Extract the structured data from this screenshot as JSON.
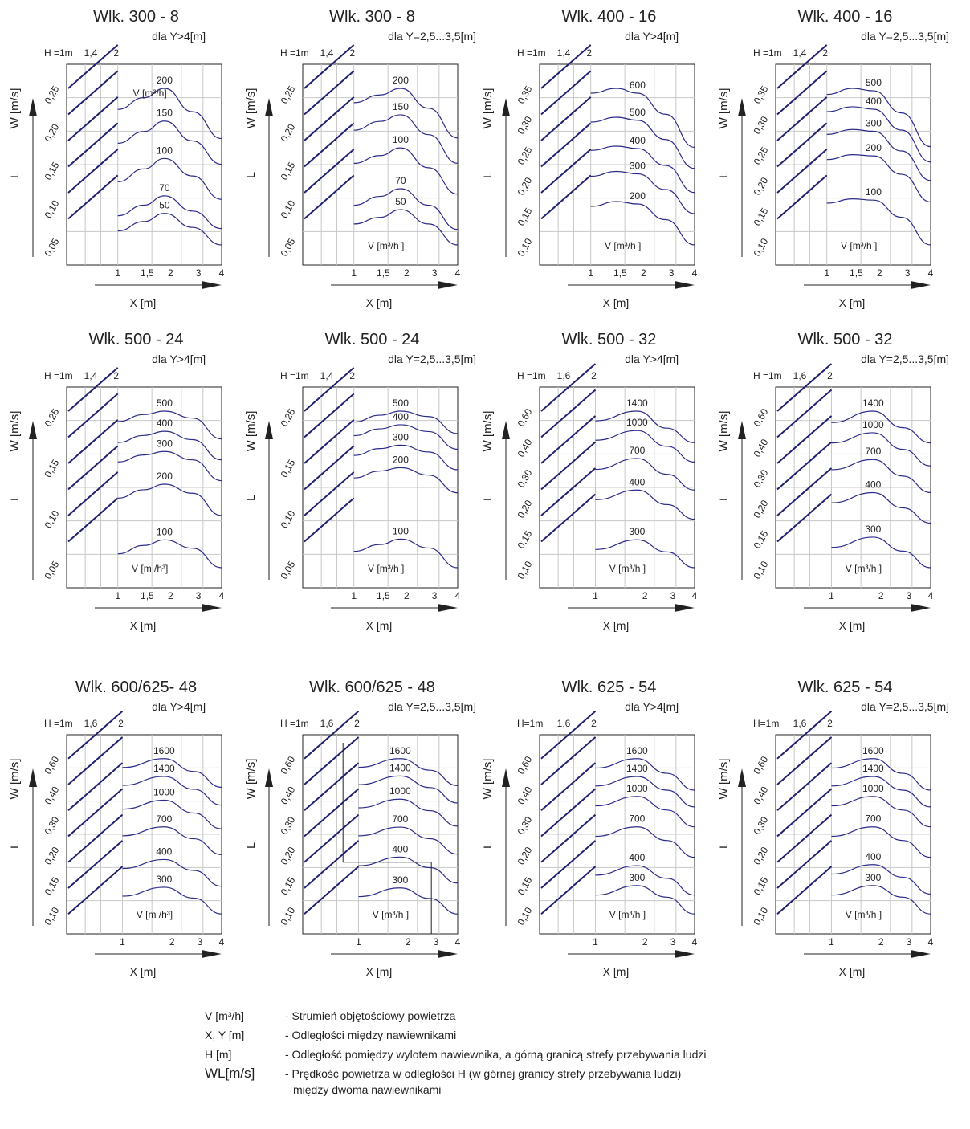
{
  "colors": {
    "curve": "#2b2b8a",
    "hatch": "#202070",
    "grid": "#c8c8c8",
    "frame": "#222222"
  },
  "common": {
    "w_label": "W [m/s]",
    "l_label": "L",
    "x_label": "X [m]"
  },
  "chart_data": [
    {
      "type": "line",
      "title": "Wlk. 300 - 8",
      "subtitle": "dla Y>4[m]",
      "h_ticks": [
        "H =1m",
        "1,4",
        "2"
      ],
      "x_ticks": [
        "1",
        "1,5",
        "2",
        "3",
        "4"
      ],
      "w_ticks": [
        "0,25",
        "0,20",
        "0,15",
        "0,10",
        "0,05"
      ],
      "unit_label": "V [m³/h]",
      "unit_pos": "top",
      "series": [
        {
          "name": "200",
          "values": [
            0.162,
            0.172,
            0.18,
            0.16,
            0.137
          ]
        },
        {
          "name": "150",
          "values": [
            0.133,
            0.143,
            0.152,
            0.135,
            0.115
          ]
        },
        {
          "name": "100",
          "values": [
            0.1,
            0.111,
            0.12,
            0.105,
            0.085
          ]
        },
        {
          "name": "70",
          "values": [
            0.071,
            0.08,
            0.088,
            0.075,
            0.06
          ]
        },
        {
          "name": "50",
          "values": [
            0.058,
            0.066,
            0.073,
            0.061,
            0.046
          ]
        }
      ]
    },
    {
      "type": "line",
      "title": "Wlk. 300 - 8",
      "subtitle": "dla  Y=2,5...3,5[m]",
      "h_ticks": [
        "H =1m",
        "1,4",
        "2"
      ],
      "x_ticks": [
        "1",
        "1,5",
        "2",
        "3",
        "4"
      ],
      "w_ticks": [
        "0,25",
        "0,20",
        "0,15",
        "0,10",
        "0,05"
      ],
      "unit_label": "V [m³/h ]",
      "unit_pos": "bottom",
      "series": [
        {
          "name": "200",
          "values": [
            0.205,
            0.212,
            0.218,
            0.2,
            0.173
          ]
        },
        {
          "name": "150",
          "values": [
            0.18,
            0.188,
            0.194,
            0.176,
            0.15
          ]
        },
        {
          "name": "100",
          "values": [
            0.15,
            0.157,
            0.164,
            0.146,
            0.122
          ]
        },
        {
          "name": "70",
          "values": [
            0.112,
            0.12,
            0.127,
            0.112,
            0.09
          ]
        },
        {
          "name": "50",
          "values": [
            0.095,
            0.101,
            0.108,
            0.095,
            0.076
          ]
        }
      ]
    },
    {
      "type": "line",
      "title": "Wlk. 400 - 16",
      "subtitle": "dla Y>4[m]",
      "h_ticks": [
        "H =1m",
        "1,4",
        "2"
      ],
      "x_ticks": [
        "1",
        "1,5",
        "2",
        "3",
        "4"
      ],
      "w_ticks": [
        "0,35",
        "0,30",
        "0,25",
        "0,20",
        "0,15",
        "0,10"
      ],
      "unit_label": "V [m³/h ]",
      "unit_pos": "bottom",
      "series": [
        {
          "name": "600",
          "values": [
            0.36,
            0.368,
            0.36,
            0.325,
            0.27
          ]
        },
        {
          "name": "500",
          "values": [
            0.312,
            0.32,
            0.315,
            0.283,
            0.235
          ]
        },
        {
          "name": "400",
          "values": [
            0.265,
            0.272,
            0.268,
            0.24,
            0.195
          ]
        },
        {
          "name": "300",
          "values": [
            0.222,
            0.23,
            0.226,
            0.2,
            0.16
          ]
        },
        {
          "name": "200",
          "values": [
            0.172,
            0.18,
            0.176,
            0.15,
            0.108
          ]
        }
      ]
    },
    {
      "type": "line",
      "title": "Wlk. 400 - 16",
      "subtitle": "dla  Y=2,5...3,5[m]",
      "h_ticks": [
        "H =1m",
        "1,4",
        "2"
      ],
      "x_ticks": [
        "1",
        "1,5",
        "2",
        "3",
        "4"
      ],
      "w_ticks": [
        "0,35",
        "0,30",
        "0,25",
        "0,20",
        "0,15",
        "0,10"
      ],
      "unit_label": "V [m³/h ]",
      "unit_pos": "bottom",
      "series": [
        {
          "name": "500",
          "values": [
            0.33,
            0.34,
            0.336,
            0.3,
            0.245
          ]
        },
        {
          "name": "400",
          "values": [
            0.302,
            0.31,
            0.306,
            0.272,
            0.22
          ]
        },
        {
          "name": "300",
          "values": [
            0.265,
            0.273,
            0.27,
            0.238,
            0.19
          ]
        },
        {
          "name": "200",
          "values": [
            0.224,
            0.232,
            0.23,
            0.2,
            0.155
          ]
        },
        {
          "name": "100",
          "values": [
            0.153,
            0.16,
            0.158,
            0.13,
            0.085
          ]
        }
      ]
    },
    {
      "type": "line",
      "title": "Wlk. 500 - 24",
      "subtitle": "dla Y>4[m]",
      "h_ticks": [
        "H =1m",
        "1,4",
        "2"
      ],
      "x_ticks": [
        "1",
        "1,5",
        "2",
        "3",
        "4"
      ],
      "w_ticks": [
        "0,25",
        "0,15",
        "0,10",
        "0,05"
      ],
      "unit_label": "V [m /h³]",
      "unit_pos": "bottom",
      "series": [
        {
          "name": "500",
          "values": [
            0.24,
            0.25,
            0.255,
            0.245,
            0.215
          ]
        },
        {
          "name": "400",
          "values": [
            0.21,
            0.22,
            0.226,
            0.214,
            0.185
          ]
        },
        {
          "name": "300",
          "values": [
            0.182,
            0.192,
            0.197,
            0.185,
            0.155
          ]
        },
        {
          "name": "200",
          "values": [
            0.13,
            0.142,
            0.15,
            0.137,
            0.105
          ]
        },
        {
          "name": "100",
          "values": [
            0.05,
            0.062,
            0.07,
            0.058,
            0.03
          ]
        }
      ]
    },
    {
      "type": "line",
      "title": "Wlk. 500 - 24",
      "subtitle": "dla  Y=2,5...3,5[m]",
      "h_ticks": [
        "H =1m",
        "1,4",
        "2"
      ],
      "x_ticks": [
        "1",
        "1,5",
        "2",
        "3",
        "4"
      ],
      "w_ticks": [
        "0,25",
        "0,15",
        "0,10",
        "0,05"
      ],
      "unit_label": "V [m³/h ]",
      "unit_pos": "bottom",
      "series": [
        {
          "name": "500",
          "values": [
            0.282,
            0.292,
            0.298,
            0.29,
            0.265
          ]
        },
        {
          "name": "400",
          "values": [
            0.262,
            0.272,
            0.278,
            0.268,
            0.242
          ]
        },
        {
          "name": "300",
          "values": [
            0.233,
            0.243,
            0.248,
            0.238,
            0.212
          ]
        },
        {
          "name": "200",
          "values": [
            0.2,
            0.21,
            0.215,
            0.204,
            0.178
          ]
        },
        {
          "name": "100",
          "values": [
            0.092,
            0.102,
            0.11,
            0.097,
            0.068
          ]
        }
      ]
    },
    {
      "type": "line",
      "title": "Wlk. 500 - 32",
      "subtitle": "dla Y>4[m]",
      "h_ticks": [
        "H =1m",
        "1,6",
        "2"
      ],
      "x_ticks": [
        "1",
        "2",
        "3",
        "4"
      ],
      "w_ticks": [
        "0,60",
        "0,40",
        "0,30",
        "0,20",
        "0,15",
        "0,10"
      ],
      "unit_label": "V [m³/h ]",
      "unit_pos": "bottom",
      "series": [
        {
          "name": "1400",
          "values": [
            0.68,
            0.72,
            0.65,
            0.59
          ]
        },
        {
          "name": "1000",
          "values": [
            0.6,
            0.64,
            0.575,
            0.51
          ]
        },
        {
          "name": "700",
          "values": [
            0.48,
            0.525,
            0.46,
            0.395
          ]
        },
        {
          "name": "400",
          "values": [
            0.355,
            0.395,
            0.335,
            0.275
          ]
        },
        {
          "name": "300",
          "values": [
            0.15,
            0.19,
            0.14,
            0.075
          ]
        }
      ]
    },
    {
      "type": "line",
      "title": "Wlk. 500 - 32",
      "subtitle": "dla  Y=2,5...3,5[m]",
      "h_ticks": [
        "H =1m",
        "1,6",
        "2"
      ],
      "x_ticks": [
        "1",
        "2",
        "3",
        "4"
      ],
      "w_ticks": [
        "0,60",
        "0,40",
        "0,30",
        "0,20",
        "0,15",
        "0,10"
      ],
      "unit_label": "V [m³/h ]",
      "unit_pos": "bottom",
      "series": [
        {
          "name": "1400",
          "values": [
            0.69,
            0.735,
            0.67,
            0.61
          ]
        },
        {
          "name": "1000",
          "values": [
            0.61,
            0.65,
            0.585,
            0.52
          ]
        },
        {
          "name": "700",
          "values": [
            0.505,
            0.545,
            0.48,
            0.415
          ]
        },
        {
          "name": "400",
          "values": [
            0.375,
            0.415,
            0.355,
            0.295
          ]
        },
        {
          "name": "300",
          "values": [
            0.2,
            0.24,
            0.185,
            0.12
          ]
        }
      ]
    },
    {
      "type": "line",
      "title": "Wlk. 600/625- 48",
      "subtitle": "dla Y>4[m]",
      "h_ticks": [
        "H =1m",
        "1,6",
        "2"
      ],
      "x_ticks": [
        "1",
        "2",
        "3",
        "4"
      ],
      "w_ticks": [
        "0,60",
        "0,40",
        "0,30",
        "0,20",
        "0,15",
        "0,10"
      ],
      "unit_label": "V [m /h³]",
      "unit_pos": "bottom",
      "series": [
        {
          "name": "1600",
          "values": [
            0.8,
            0.845,
            0.78,
            0.7
          ]
        },
        {
          "name": "1400",
          "values": [
            0.71,
            0.755,
            0.69,
            0.61
          ]
        },
        {
          "name": "1000",
          "values": [
            0.59,
            0.635,
            0.57,
            0.49
          ]
        },
        {
          "name": "700",
          "values": [
            0.455,
            0.5,
            0.44,
            0.36
          ]
        },
        {
          "name": "400",
          "values": [
            0.29,
            0.335,
            0.28,
            0.2
          ]
        },
        {
          "name": "300",
          "values": [
            0.15,
            0.195,
            0.14,
            0.06
          ]
        }
      ]
    },
    {
      "type": "line",
      "title": "Wlk. 600/625 - 48",
      "subtitle": "dla  Y=2,5...3,5[m]",
      "h_ticks": [
        "H =1m",
        "1,6",
        "2"
      ],
      "x_ticks": [
        "1",
        "2",
        "3",
        "4"
      ],
      "w_ticks": [
        "0,60",
        "0,40",
        "0,30",
        "0,20",
        "0,15",
        "0,10"
      ],
      "unit_label": "V [m³/h ]",
      "unit_pos": "bottom",
      "example": true,
      "series": [
        {
          "name": "1600",
          "values": [
            0.81,
            0.855,
            0.795,
            0.715
          ]
        },
        {
          "name": "1400",
          "values": [
            0.72,
            0.765,
            0.705,
            0.625
          ]
        },
        {
          "name": "1000",
          "values": [
            0.6,
            0.645,
            0.585,
            0.505
          ]
        },
        {
          "name": "700",
          "values": [
            0.455,
            0.5,
            0.44,
            0.36
          ]
        },
        {
          "name": "400",
          "values": [
            0.3,
            0.345,
            0.29,
            0.21
          ]
        },
        {
          "name": "300",
          "values": [
            0.14,
            0.185,
            0.13,
            0.05
          ]
        }
      ]
    },
    {
      "type": "line",
      "title": "Wlk. 625 - 54",
      "subtitle": "dla Y>4[m]",
      "h_ticks": [
        "H=1m",
        "1,6",
        "2"
      ],
      "x_ticks": [
        "1",
        "2",
        "3",
        "4"
      ],
      "w_ticks": [
        "0,60",
        "0,40",
        "0,30",
        "0,20",
        "0,15",
        "0,10"
      ],
      "unit_label": "V [m³/h ]",
      "unit_pos": "bottom",
      "series": [
        {
          "name": "1600",
          "values": [
            0.745,
            0.79,
            0.72,
            0.64
          ]
        },
        {
          "name": "1400",
          "values": [
            0.66,
            0.705,
            0.64,
            0.56
          ]
        },
        {
          "name": "1000",
          "values": [
            0.565,
            0.61,
            0.545,
            0.465
          ]
        },
        {
          "name": "700",
          "values": [
            0.42,
            0.465,
            0.4,
            0.32
          ]
        },
        {
          "name": "400",
          "values": [
            0.235,
            0.28,
            0.22,
            0.14
          ]
        },
        {
          "name": "300",
          "values": [
            0.14,
            0.185,
            0.13,
            0.05
          ]
        }
      ]
    },
    {
      "type": "line",
      "title": "Wlk. 625 - 54",
      "subtitle": "dla  Y=2,5...3,5[m]",
      "h_ticks": [
        "H=1m",
        "1,6",
        "2"
      ],
      "x_ticks": [
        "1",
        "2",
        "3",
        "4"
      ],
      "w_ticks": [
        "0,60",
        "0,40",
        "0,30",
        "0,20",
        "0,15",
        "0,10"
      ],
      "unit_label": "V [m³/h ]",
      "unit_pos": "bottom",
      "series": [
        {
          "name": "1600",
          "values": [
            0.745,
            0.79,
            0.72,
            0.64
          ]
        },
        {
          "name": "1400",
          "values": [
            0.66,
            0.705,
            0.64,
            0.56
          ]
        },
        {
          "name": "1000",
          "values": [
            0.565,
            0.61,
            0.545,
            0.465
          ]
        },
        {
          "name": "700",
          "values": [
            0.42,
            0.465,
            0.4,
            0.32
          ]
        },
        {
          "name": "400",
          "values": [
            0.24,
            0.285,
            0.225,
            0.145
          ]
        },
        {
          "name": "300",
          "values": [
            0.14,
            0.185,
            0.13,
            0.05
          ]
        }
      ]
    }
  ],
  "legend": [
    {
      "symbol": "V [m³/h]",
      "text": "- Strumień objętościowy powietrza"
    },
    {
      "symbol": "X, Y [m]",
      "text": "- Odległości między nawiewnikami"
    },
    {
      "symbol": "H  [m]",
      "text": "- Odległość pomiędzy wylotem nawiewnika, a górną granicą strefy przebywania ludzi"
    },
    {
      "symbol": "WL[m/s]",
      "text": "- Prędkość powietrza w odległości H  (w górnej granicy strefy przebywania ludzi)"
    }
  ],
  "legend_continuation": "między dwoma nawiewnikami"
}
